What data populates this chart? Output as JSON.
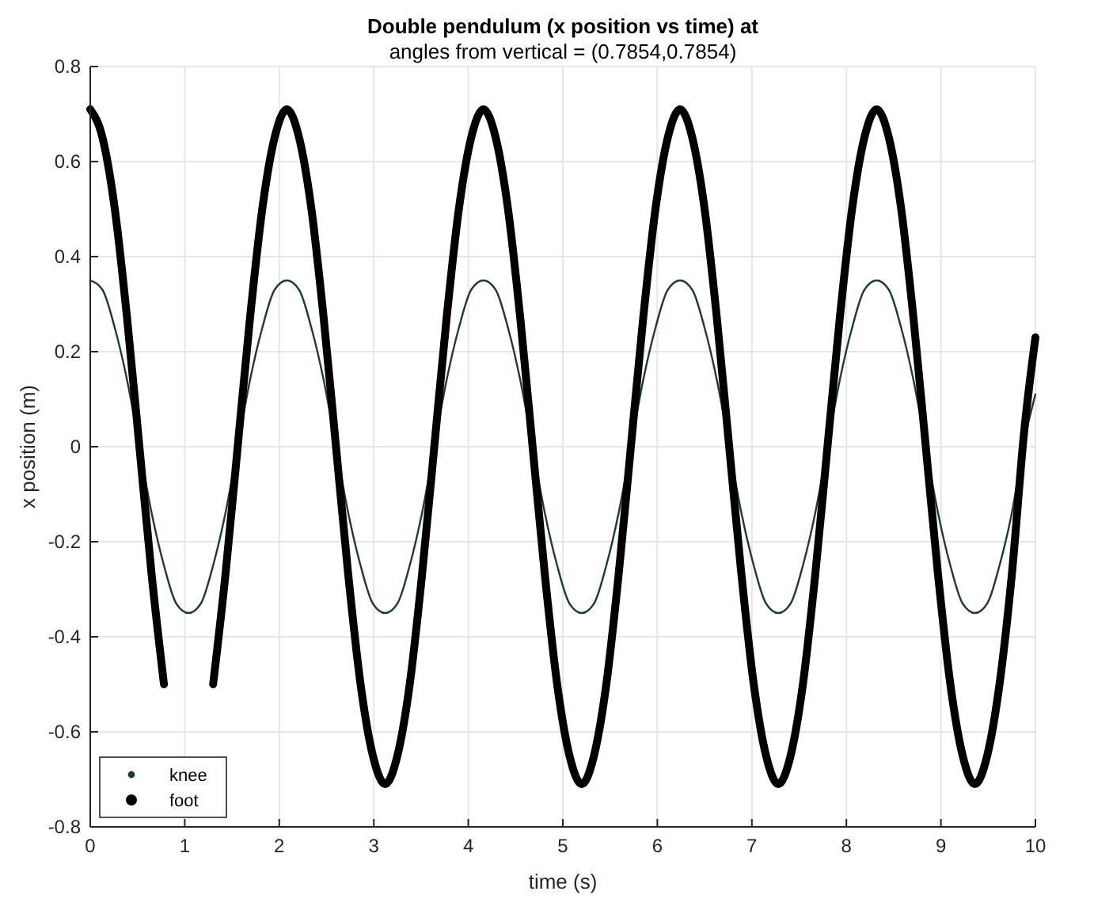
{
  "chart_data": {
    "type": "line",
    "title": "Double pendulum (x position vs time) at",
    "subtitle": "angles from vertical = (0.7854,0.7854)",
    "xlabel": "time (s)",
    "ylabel": "x position (m)",
    "x": [
      0,
      0.13,
      0.26,
      0.39,
      0.52,
      0.65,
      0.78,
      0.91,
      1.04,
      1.17,
      1.3,
      1.43,
      1.56,
      1.69,
      1.82,
      1.95,
      2.08,
      2.21,
      2.34,
      2.47,
      2.6,
      2.73,
      2.86,
      2.99,
      3.12,
      3.25,
      3.38,
      3.51,
      3.64,
      3.77,
      3.9,
      4.03,
      4.16,
      4.29,
      4.42,
      4.55,
      4.68,
      4.81,
      4.94,
      5.07,
      5.2,
      5.33,
      5.46,
      5.59,
      5.72,
      5.85,
      5.98,
      6.11,
      6.24,
      6.37,
      6.5,
      6.63,
      6.76,
      6.89,
      7.02,
      7.15,
      7.28,
      7.41,
      7.54,
      7.67,
      7.8,
      7.93,
      8.06,
      8.19,
      8.32,
      8.45,
      8.58,
      8.71,
      8.84,
      8.97,
      9.1,
      9.23,
      9.36,
      9.49,
      9.62,
      9.75,
      9.88,
      10
    ],
    "series": [
      {
        "name": "knee",
        "color": "#1f3a3a",
        "values": [
          0.35,
          0.33,
          0.25,
          0.14,
          0,
          -0.14,
          -0.25,
          -0.33,
          -0.35,
          -0.33,
          -0.25,
          -0.14,
          0,
          0.14,
          0.25,
          0.33,
          0.35,
          0.33,
          0.25,
          0.14,
          0,
          -0.14,
          -0.25,
          -0.33,
          -0.35,
          -0.33,
          -0.25,
          -0.14,
          0,
          0.14,
          0.25,
          0.33,
          0.35,
          0.33,
          0.25,
          0.14,
          0,
          -0.14,
          -0.25,
          -0.33,
          -0.35,
          -0.33,
          -0.25,
          -0.14,
          0,
          0.14,
          0.25,
          0.33,
          0.35,
          0.33,
          0.25,
          0.14,
          0,
          -0.14,
          -0.25,
          -0.33,
          -0.35,
          -0.33,
          -0.25,
          -0.14,
          0,
          0.14,
          0.25,
          0.33,
          0.35,
          0.33,
          0.25,
          0.14,
          0,
          -0.14,
          -0.25,
          -0.33,
          -0.35,
          -0.33,
          -0.25,
          -0.14,
          0.01,
          0.11
        ]
      },
      {
        "name": "foot",
        "color": "#000000",
        "values": [
          0.71,
          0.65,
          0.5,
          0.27,
          0,
          -0.27,
          -0.5,
          null,
          null,
          null,
          -0.5,
          -0.27,
          0,
          0.27,
          0.5,
          0.65,
          0.71,
          0.65,
          0.5,
          0.27,
          0,
          -0.27,
          -0.5,
          -0.65,
          -0.71,
          -0.65,
          -0.5,
          -0.27,
          0,
          0.27,
          0.5,
          0.65,
          0.71,
          0.65,
          0.5,
          0.27,
          0,
          -0.27,
          -0.5,
          -0.65,
          -0.71,
          -0.65,
          -0.5,
          -0.27,
          0,
          0.27,
          0.5,
          0.65,
          0.71,
          0.65,
          0.5,
          0.27,
          0,
          -0.27,
          -0.5,
          -0.65,
          -0.71,
          -0.65,
          -0.5,
          -0.27,
          0,
          0.27,
          0.5,
          0.65,
          0.71,
          0.65,
          0.5,
          0.27,
          0,
          -0.27,
          -0.5,
          -0.65,
          -0.71,
          -0.65,
          -0.5,
          -0.27,
          0.03,
          0.23
        ]
      }
    ],
    "xlim": [
      0,
      10
    ],
    "xticks": [
      0,
      1,
      2,
      3,
      4,
      5,
      6,
      7,
      8,
      9,
      10
    ],
    "ylim": [
      -0.8,
      0.8
    ],
    "yticks": [
      -0.8,
      -0.6,
      -0.4,
      -0.2,
      0,
      0.2,
      0.4,
      0.6,
      0.8
    ],
    "grid": true,
    "legend": "bottom left"
  }
}
